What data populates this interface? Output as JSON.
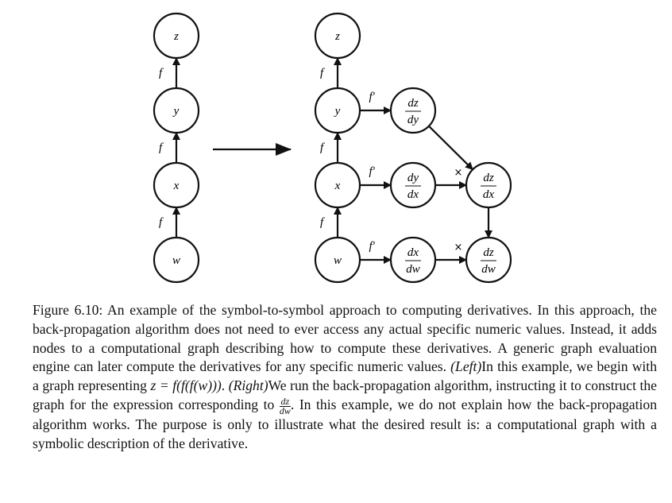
{
  "left_graph": {
    "nodes": [
      {
        "id": "L_z",
        "label": "z"
      },
      {
        "id": "L_y",
        "label": "y"
      },
      {
        "id": "L_x",
        "label": "x"
      },
      {
        "id": "L_w",
        "label": "w"
      }
    ],
    "edges": [
      {
        "from": "L_w",
        "to": "L_x",
        "label": "f"
      },
      {
        "from": "L_x",
        "to": "L_y",
        "label": "f"
      },
      {
        "from": "L_y",
        "to": "L_z",
        "label": "f"
      }
    ]
  },
  "right_graph": {
    "nodes": [
      {
        "id": "R_z",
        "label": "z"
      },
      {
        "id": "R_y",
        "label": "y"
      },
      {
        "id": "R_x",
        "label": "x"
      },
      {
        "id": "R_w",
        "label": "w"
      },
      {
        "id": "R_dzdy",
        "num": "dz",
        "den": "dy"
      },
      {
        "id": "R_dydx",
        "num": "dy",
        "den": "dx"
      },
      {
        "id": "R_dxdw",
        "num": "dx",
        "den": "dw"
      },
      {
        "id": "R_dzdx",
        "num": "dz",
        "den": "dx"
      },
      {
        "id": "R_dzdw",
        "num": "dz",
        "den": "dw"
      }
    ],
    "edges": [
      {
        "from": "R_w",
        "to": "R_x",
        "label": "f"
      },
      {
        "from": "R_x",
        "to": "R_y",
        "label": "f"
      },
      {
        "from": "R_y",
        "to": "R_z",
        "label": "f"
      },
      {
        "from": "R_y",
        "to": "R_dzdy",
        "label": "f′"
      },
      {
        "from": "R_x",
        "to": "R_dydx",
        "label": "f′"
      },
      {
        "from": "R_w",
        "to": "R_dxdw",
        "label": "f′"
      },
      {
        "from": "R_dzdy",
        "to": "R_dzdx",
        "label": ""
      },
      {
        "from": "R_dydx",
        "to": "R_dzdx",
        "label": ""
      },
      {
        "from": "R_dzdx",
        "to": "R_dzdw",
        "label": ""
      },
      {
        "from": "R_dxdw",
        "to": "R_dzdw",
        "label": ""
      }
    ],
    "operators": [
      {
        "node": "R_dzdx",
        "symbol": "×"
      },
      {
        "node": "R_dzdw",
        "symbol": "×"
      }
    ]
  },
  "caption": {
    "part1": "Figure 6.10: An example of the symbol-to-symbol approach to computing derivatives. In this approach, the back-propagation algorithm does not need to ever access any actual specific numeric values. Instead, it adds nodes to a computational graph describing how to compute these derivatives. A generic graph evaluation engine can later compute the derivatives for any specific numeric values. ",
    "left_tag": "(Left)",
    "part2": "In this example, we begin with a graph representing ",
    "equation": "z = f(f(f(w)))",
    "part3": ". ",
    "right_tag": "(Right)",
    "part4": "We run the back-propagation algorithm, instructing it to construct the graph for the expression corresponding to ",
    "frac_num": "dz",
    "frac_den": "dw",
    "part5": ". In this example, we do not explain how the back-propagation algorithm works. The purpose is only to illustrate what the desired result is: a computational graph with a symbolic description of the derivative."
  }
}
